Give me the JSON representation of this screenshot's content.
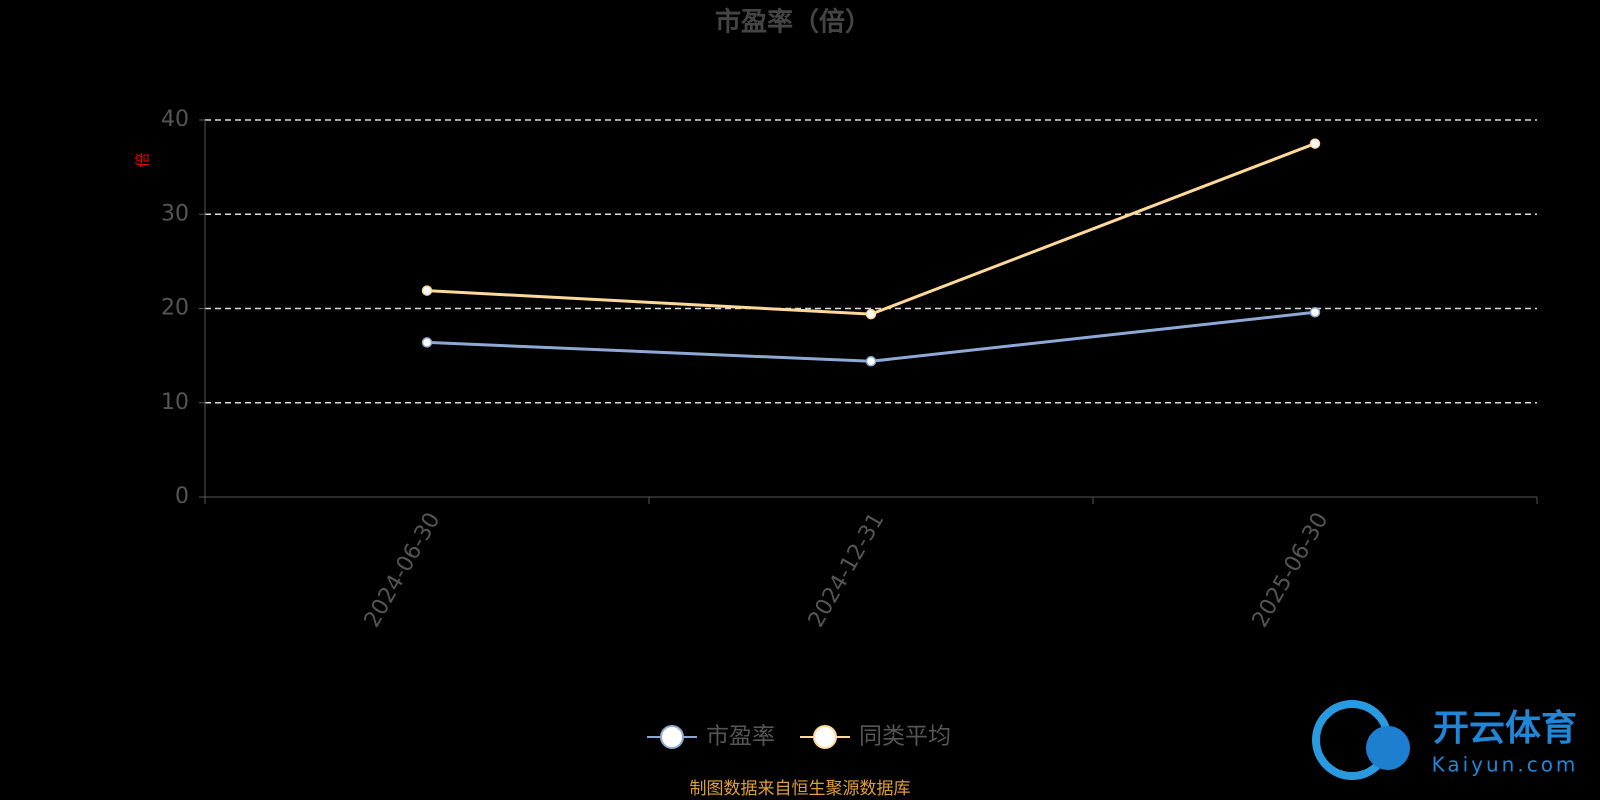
{
  "chart_data": {
    "type": "line",
    "title": "市盈率（倍）",
    "y_label": "倍",
    "categories": [
      "2024-06-30",
      "2024-12-31",
      "2025-06-30"
    ],
    "series": [
      {
        "name": "市盈率",
        "color": "#8fa9d6",
        "values": [
          16.4,
          14.4,
          19.6
        ]
      },
      {
        "name": "同类平均",
        "color": "#ffd89a",
        "values": [
          21.9,
          19.4,
          37.5
        ]
      }
    ],
    "ylim": [
      0,
      40
    ],
    "yticks": [
      0,
      10,
      20,
      30,
      40
    ],
    "grid": true
  },
  "footer": "制图数据来自恒生聚源数据库",
  "watermark": {
    "brand": "开云体育",
    "site": "Kaiyun.com"
  }
}
